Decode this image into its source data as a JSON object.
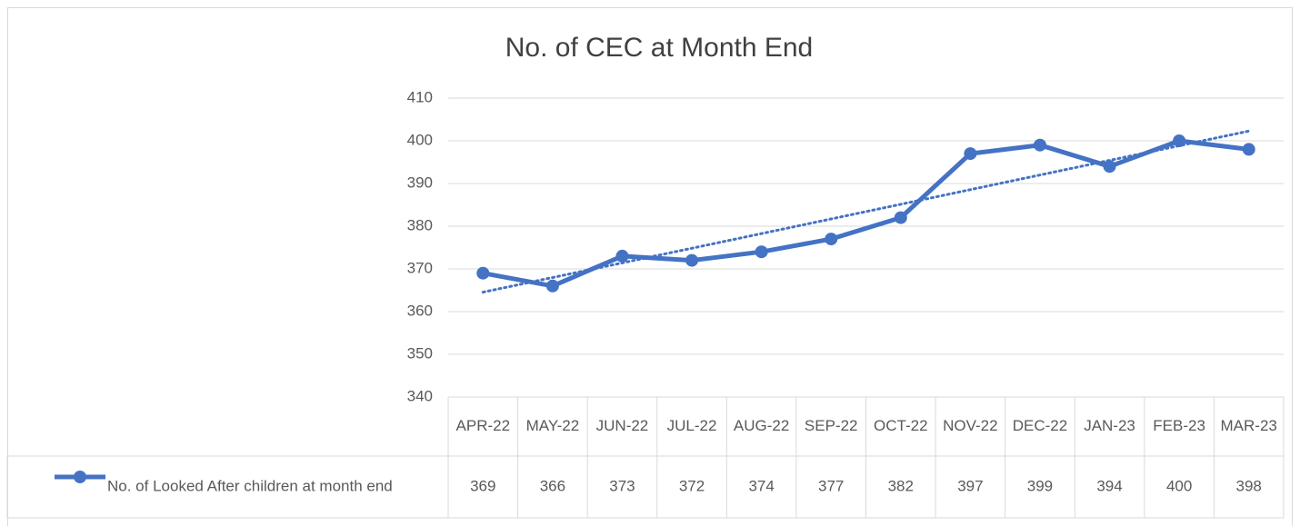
{
  "chart_data": {
    "type": "line",
    "title": "No. of CEC at Month End",
    "categories": [
      "APR-22",
      "MAY-22",
      "JUN-22",
      "JUL-22",
      "AUG-22",
      "SEP-22",
      "OCT-22",
      "NOV-22",
      "DEC-22",
      "JAN-23",
      "FEB-23",
      "MAR-23"
    ],
    "series": [
      {
        "name": "No. of Looked After children at month end",
        "color": "#4472c4",
        "values": [
          369,
          366,
          373,
          372,
          374,
          377,
          382,
          397,
          399,
          394,
          400,
          398
        ]
      }
    ],
    "ylim": [
      340,
      410
    ],
    "yticks": [
      340,
      350,
      360,
      370,
      380,
      390,
      400,
      410
    ],
    "grid": true,
    "trendline": "linear",
    "data_table": true
  }
}
